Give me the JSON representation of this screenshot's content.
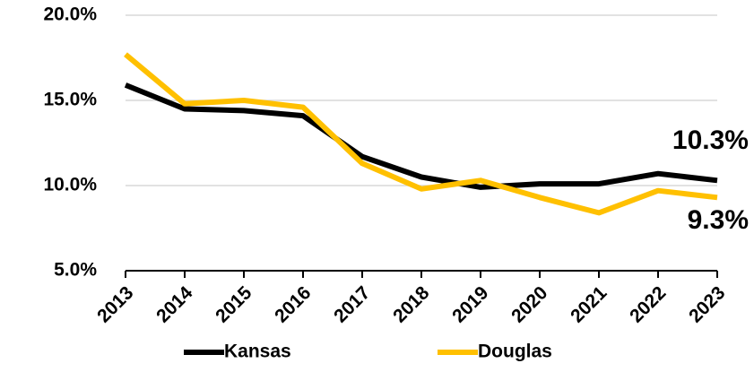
{
  "chart_data": {
    "type": "line",
    "categories": [
      "2013",
      "2014",
      "2015",
      "2016",
      "2017",
      "2018",
      "2019",
      "2020",
      "2021",
      "2022",
      "2023"
    ],
    "series": [
      {
        "name": "Kansas",
        "color": "#000000",
        "values": [
          15.9,
          14.5,
          14.4,
          14.1,
          11.7,
          10.5,
          9.9,
          10.1,
          10.1,
          10.7,
          10.3
        ]
      },
      {
        "name": "Douglas",
        "color": "#ffc000",
        "values": [
          17.7,
          14.8,
          15.0,
          14.6,
          11.3,
          9.8,
          10.3,
          9.3,
          8.4,
          9.7,
          9.3
        ]
      }
    ],
    "ylim": [
      5,
      20
    ],
    "yticks": [
      {
        "value": 5,
        "label": "5.0%"
      },
      {
        "value": 10,
        "label": "10.0%"
      },
      {
        "value": 15,
        "label": "15.0%"
      },
      {
        "value": 20,
        "label": "20.0%"
      }
    ],
    "grid": true,
    "legend": "bottom",
    "annotations": [
      {
        "text": "10.3%",
        "color": "#000000"
      },
      {
        "text": "9.3%",
        "color": "#22b04c"
      }
    ]
  }
}
